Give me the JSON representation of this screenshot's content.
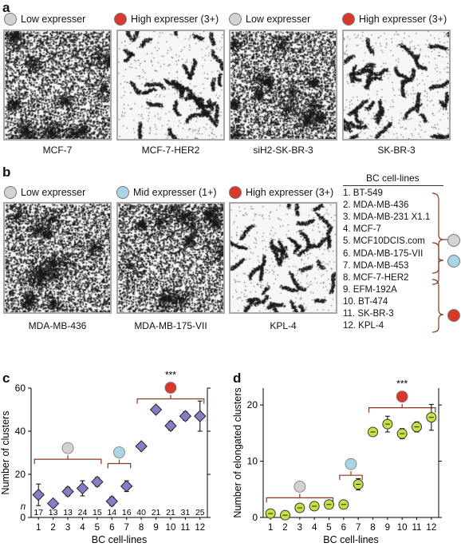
{
  "colors": {
    "low": "#d2d2d2",
    "mid": "#a9d5e6",
    "high": "#d8392b",
    "diamond_fill": "#8a7bc8",
    "circle_fill": "#c9e045",
    "bracket": "#8b3a1e",
    "image_border": "#a8a8a8"
  },
  "panel_a": {
    "letter": "a",
    "legend": [
      {
        "label": "Low expresser",
        "level": "low"
      },
      {
        "label": "High expresser (3+)",
        "level": "high"
      },
      {
        "label": "Low expresser",
        "level": "low"
      },
      {
        "label": "High expresser (3+)",
        "level": "high"
      }
    ],
    "images": [
      {
        "caption": "MCF-7",
        "pattern": "dense"
      },
      {
        "caption": "MCF-7-HER2",
        "pattern": "clustered"
      },
      {
        "caption": "siH2-SK-BR-3",
        "pattern": "dense"
      },
      {
        "caption": "SK-BR-3",
        "pattern": "clustered"
      }
    ]
  },
  "panel_b": {
    "letter": "b",
    "legend": [
      {
        "label": "Low expresser",
        "level": "low"
      },
      {
        "label": "Mid expresser (1+)",
        "level": "mid"
      },
      {
        "label": "High expresser (3+)",
        "level": "high"
      }
    ],
    "images": [
      {
        "caption": "MDA-MB-436",
        "pattern": "dense"
      },
      {
        "caption": "MDA-MB-175-VII",
        "pattern": "dense"
      },
      {
        "caption": "KPL-4",
        "pattern": "clustered"
      }
    ],
    "cell_lines_title": "BC cell-lines",
    "cell_lines": [
      "1. BT-549",
      "2. MDA-MB-436",
      "3. MDA-MB-231 X1.1",
      "4. MCF-7",
      "5. MCF10DCIS.com",
      "6. MDA-MB-175-VII",
      "7. MDA-MB-453",
      "8. MCF-7-HER2",
      "9. EFM-192A",
      "10. BT-474",
      "11. SK-BR-3",
      "12. KPL-4"
    ]
  },
  "chart_data": [
    {
      "panel": "c",
      "type": "scatter",
      "marker": "diamond",
      "xlabel": "BC cell-lines",
      "ylabel": "Number of clusters",
      "x": [
        1,
        2,
        3,
        4,
        5,
        6,
        7,
        8,
        9,
        10,
        11,
        12
      ],
      "y": [
        10.5,
        6.5,
        12,
        13.5,
        16.5,
        7.5,
        14.5,
        33,
        50,
        42.5,
        47,
        47
      ],
      "err": [
        5,
        1.2,
        2,
        3.5,
        2,
        2,
        2.5,
        1.5,
        1.5,
        2,
        2,
        7
      ],
      "n_label": "n",
      "n": [
        "17",
        "13",
        "13",
        "24",
        "15",
        "14",
        "16",
        "40",
        "21",
        "21",
        "31",
        "25"
      ],
      "xlim": [
        0.5,
        12.5
      ],
      "ylim": [
        0,
        60
      ],
      "yticks": [
        0,
        20,
        40,
        60
      ],
      "significance": "***"
    },
    {
      "panel": "d",
      "type": "scatter",
      "marker": "circle",
      "xlabel": "BC cell-lines",
      "ylabel": "Number of elongated clusters",
      "x": [
        1,
        2,
        3,
        4,
        5,
        6,
        7,
        8,
        9,
        10,
        11,
        12
      ],
      "y": [
        0.7,
        0.4,
        1.7,
        2,
        2.3,
        2.3,
        5.9,
        15.2,
        16.6,
        14.9,
        16.1,
        17.8
      ],
      "err": [
        0.5,
        0.3,
        0.4,
        0.5,
        0.4,
        0.5,
        1,
        0.5,
        1.4,
        0.9,
        0.9,
        2.3
      ],
      "xlim": [
        0.5,
        12.5
      ],
      "ylim": [
        0,
        23
      ],
      "yticks": [
        0,
        10,
        20
      ],
      "significance": "***"
    }
  ]
}
